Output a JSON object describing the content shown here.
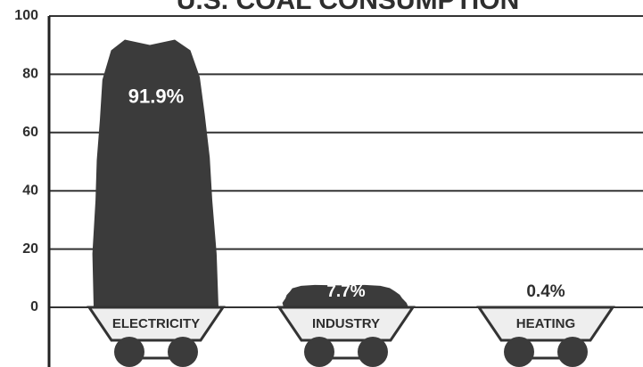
{
  "chart_data": {
    "type": "bar",
    "title": "U.S. COAL CONSUMPTION",
    "categories": [
      "ELECTRICITY",
      "INDUSTRY",
      "HEATING"
    ],
    "values": [
      91.9,
      7.7,
      0.4
    ],
    "value_labels": [
      "91.9%",
      "7.7%",
      "0.4%"
    ],
    "color": "#3b3b3b",
    "ylim": [
      0,
      100
    ],
    "yticks": [
      0,
      20,
      40,
      60,
      80,
      100
    ],
    "grid": true
  }
}
